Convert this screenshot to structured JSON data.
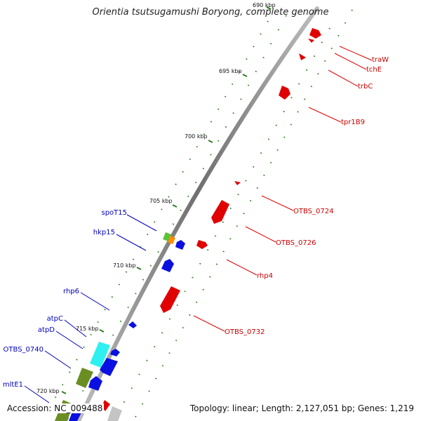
{
  "header": {
    "title": "Orientia tsutsugamushi Boryong, complete genome"
  },
  "footer": {
    "accession": "Accession: NC_009488",
    "summary": "Topology: linear; Length: 2,127,051 bp; Genes: 1,219"
  },
  "ticks": [
    "690 kbp",
    "695 kbp",
    "700 kbp",
    "705 kbp",
    "710 kbp",
    "715 kbp",
    "720 kbp"
  ],
  "genes_right": [
    "traW",
    "tchE",
    "trbC",
    "tpr1B9",
    "OTBS_0724",
    "OTBS_0726",
    "rhp4",
    "OTBS_0732"
  ],
  "genes_left": [
    "spoT15",
    "hkp15",
    "rhp6",
    "atpC",
    "atpD",
    "OTBS_0740",
    "mltE1"
  ],
  "colors": {
    "forward": "#e00000",
    "reverse": "#0000dd",
    "label_forward": "#cc0000",
    "label_reverse": "#0000bb",
    "tick": "#2e7d1f",
    "backbone": "#8a8a8a"
  }
}
